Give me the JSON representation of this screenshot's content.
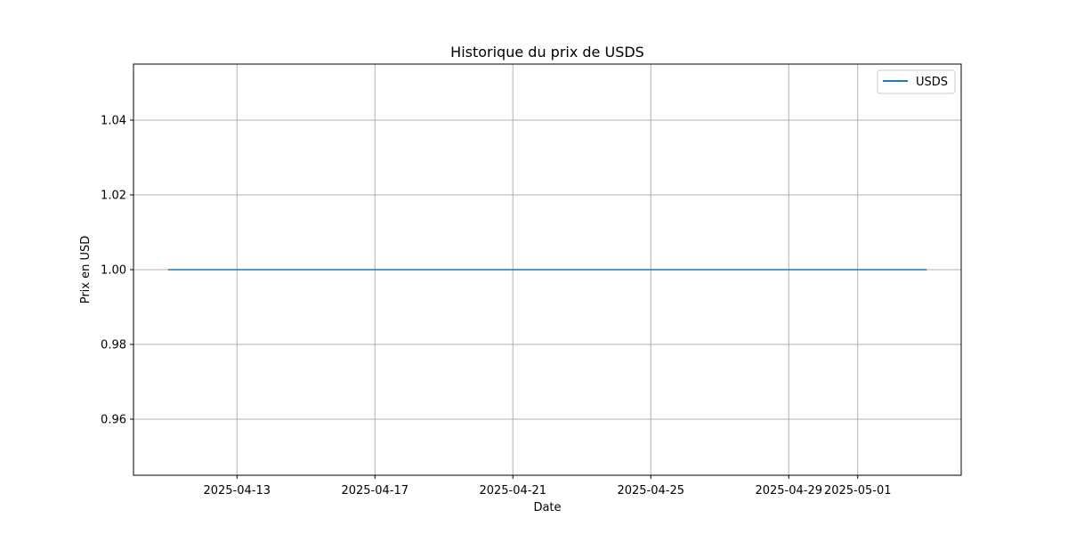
{
  "chart_data": {
    "type": "line",
    "title": "Historique du prix de USDS",
    "xlabel": "Date",
    "ylabel": "Prix en USD",
    "x_type": "date",
    "xlim": [
      "2025-04-10",
      "2025-05-04"
    ],
    "ylim": [
      0.945,
      1.055
    ],
    "xticks": [
      "2025-04-13",
      "2025-04-17",
      "2025-04-21",
      "2025-04-25",
      "2025-04-29",
      "2025-05-01"
    ],
    "yticks": [
      0.96,
      0.98,
      1.0,
      1.02,
      1.04
    ],
    "ytick_labels": [
      "0.96",
      "0.98",
      "1.00",
      "1.02",
      "1.04"
    ],
    "grid": true,
    "legend_position": "top-right",
    "series": [
      {
        "name": "USDS",
        "color": "#1f77b4",
        "x": [
          "2025-04-11",
          "2025-05-03"
        ],
        "y": [
          1.0,
          1.0
        ]
      }
    ]
  }
}
